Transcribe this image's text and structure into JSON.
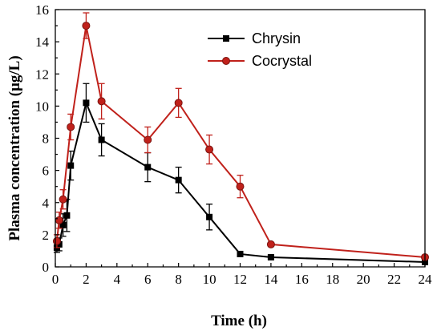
{
  "chart_data": {
    "type": "line",
    "xlabel": "Time (h)",
    "ylabel": "Plasma concentration (μg/L)",
    "xlim": [
      0,
      24
    ],
    "ylim": [
      0,
      16
    ],
    "x_ticks": [
      0,
      2,
      4,
      6,
      8,
      10,
      12,
      14,
      16,
      18,
      20,
      22,
      24
    ],
    "y_ticks": [
      0,
      2,
      4,
      6,
      8,
      10,
      12,
      14,
      16
    ],
    "x_tick_labels": [
      "0",
      "2",
      "4",
      "6",
      "8",
      "10",
      "12",
      "14",
      "16",
      "18",
      "20",
      "22",
      "24"
    ],
    "y_tick_labels": [
      "0",
      "2",
      "4",
      "6",
      "8",
      "10",
      "12",
      "14",
      "16"
    ],
    "grid": false,
    "legend_position": "top-center",
    "series": [
      {
        "name": "Chrysin",
        "color": "#000000",
        "marker": "square",
        "x": [
          0.1,
          0.25,
          0.5,
          0.75,
          1,
          2,
          3,
          6,
          8,
          10,
          12,
          14,
          24
        ],
        "y": [
          1.2,
          1.4,
          2.6,
          3.2,
          6.3,
          10.2,
          7.9,
          6.2,
          5.4,
          3.1,
          0.8,
          0.6,
          0.3
        ],
        "error": [
          0.3,
          0.4,
          0.7,
          1.0,
          0.9,
          1.2,
          1.0,
          0.9,
          0.8,
          0.8,
          0.1,
          0.1,
          0.1
        ]
      },
      {
        "name": "Cocrystal",
        "color": "#c0211b",
        "marker": "circle",
        "x": [
          0.1,
          0.25,
          0.5,
          1,
          2,
          3,
          6,
          8,
          10,
          12,
          14,
          24
        ],
        "y": [
          1.6,
          2.9,
          4.2,
          8.7,
          15.0,
          10.3,
          7.9,
          10.2,
          7.3,
          5.0,
          1.4,
          0.6
        ],
        "error": [
          0.4,
          0.5,
          0.6,
          0.8,
          0.8,
          1.1,
          0.8,
          0.9,
          0.9,
          0.7,
          0.1,
          0.1
        ]
      }
    ]
  }
}
